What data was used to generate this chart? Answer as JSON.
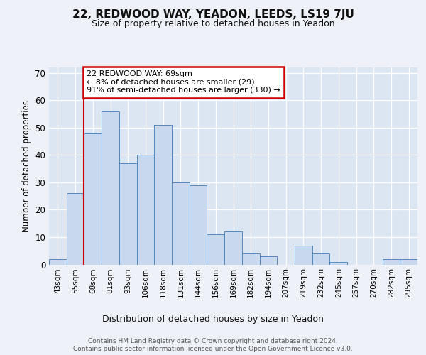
{
  "title": "22, REDWOOD WAY, YEADON, LEEDS, LS19 7JU",
  "subtitle": "Size of property relative to detached houses in Yeadon",
  "xlabel": "Distribution of detached houses by size in Yeadon",
  "ylabel": "Number of detached properties",
  "footer1": "Contains HM Land Registry data © Crown copyright and database right 2024.",
  "footer2": "Contains public sector information licensed under the Open Government Licence v3.0.",
  "categories": [
    "43sqm",
    "55sqm",
    "68sqm",
    "81sqm",
    "93sqm",
    "106sqm",
    "118sqm",
    "131sqm",
    "144sqm",
    "156sqm",
    "169sqm",
    "182sqm",
    "194sqm",
    "207sqm",
    "219sqm",
    "232sqm",
    "245sqm",
    "257sqm",
    "270sqm",
    "282sqm",
    "295sqm"
  ],
  "values": [
    2,
    26,
    48,
    56,
    37,
    40,
    51,
    30,
    29,
    11,
    12,
    4,
    3,
    0,
    7,
    4,
    1,
    0,
    0,
    2,
    2
  ],
  "bar_color": "#c8d8ee",
  "bar_edge_color": "#5588bb",
  "highlight_index": 2,
  "highlight_line_color": "#cc0000",
  "annotation_text": "22 REDWOOD WAY: 69sqm\n← 8% of detached houses are smaller (29)\n91% of semi-detached houses are larger (330) →",
  "annotation_box_color": "#ffffff",
  "annotation_box_edge": "#cc0000",
  "ylim": [
    0,
    72
  ],
  "yticks": [
    0,
    10,
    20,
    30,
    40,
    50,
    60,
    70
  ],
  "background_color": "#eef2f8",
  "plot_background": "#dce6f2",
  "grid_color": "#ffffff",
  "title_fontsize": 11,
  "subtitle_fontsize": 9
}
